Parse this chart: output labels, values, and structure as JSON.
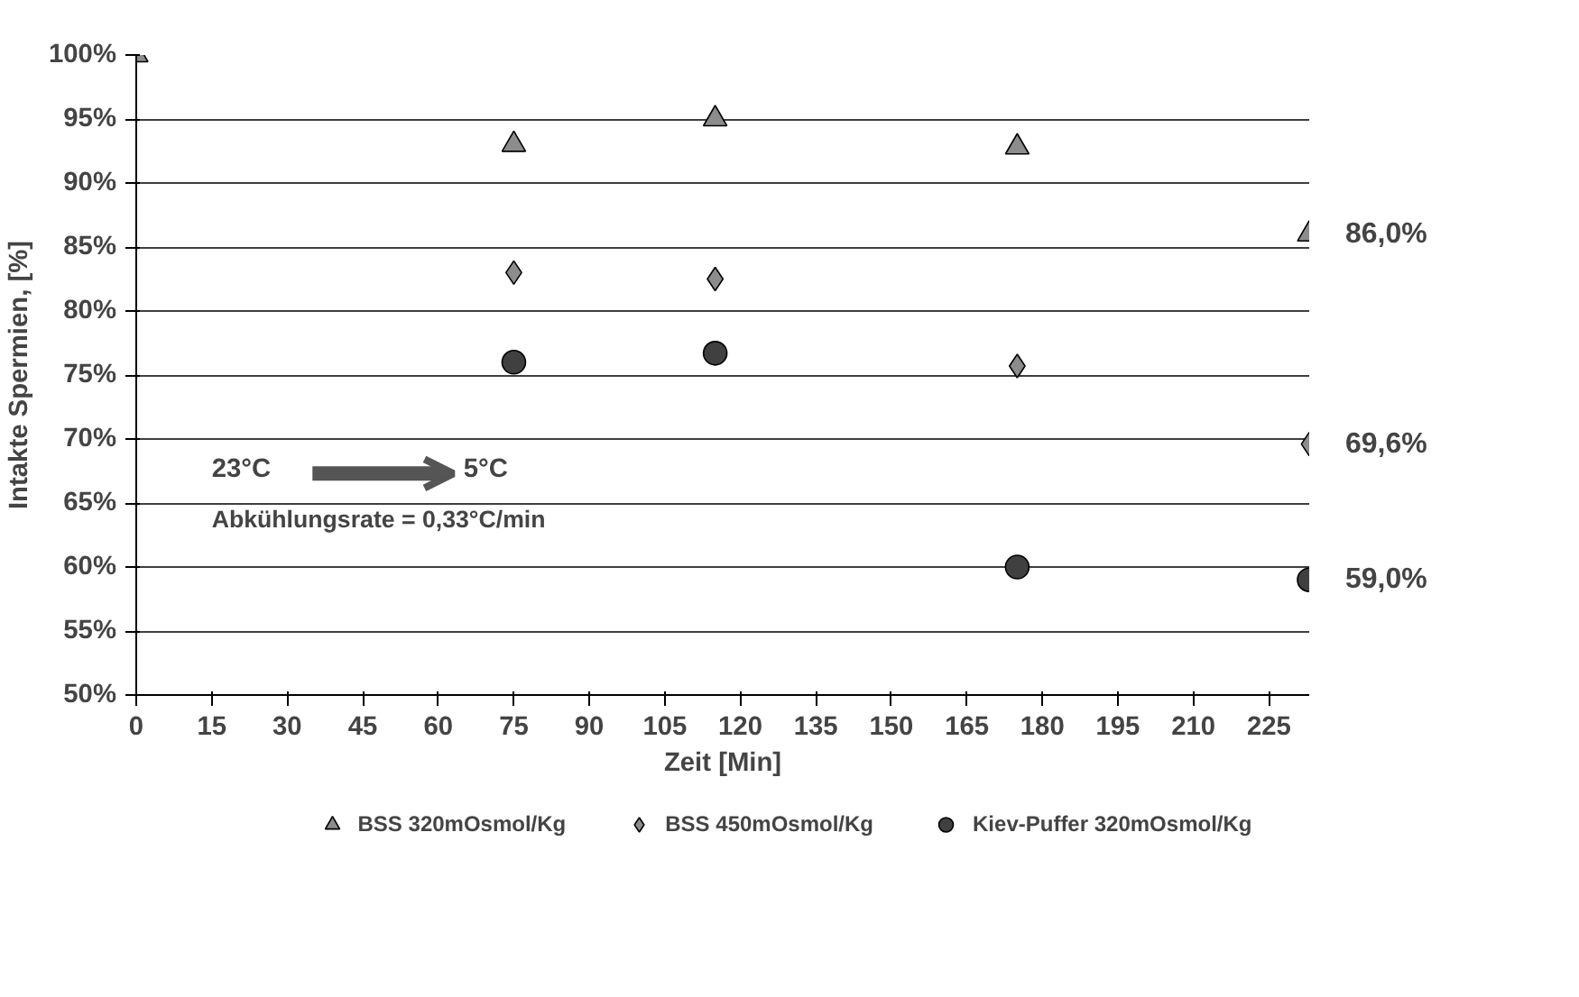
{
  "chart_data": {
    "type": "scatter",
    "xlabel": "Zeit [Min]",
    "ylabel": "Intakte Spermien, [%]",
    "x": [
      0,
      75,
      115,
      175,
      233
    ],
    "series": [
      {
        "name": "BSS 320mOsmol/Kg",
        "color": "#8c8c8c",
        "marker": "triangle",
        "values": [
          100,
          93.0,
          95.0,
          92.8,
          86.0
        ],
        "value_labels": [
          null,
          null,
          null,
          null,
          "86,0%"
        ]
      },
      {
        "name": "BSS 450mOsmol/Kg",
        "color": "#8c8c8c",
        "marker": "diamond",
        "values": [
          null,
          83.0,
          82.5,
          75.7,
          69.6
        ],
        "value_labels": [
          null,
          null,
          null,
          null,
          "69,6%"
        ]
      },
      {
        "name": "Kiev-Puffer 320mOsmol/Kg",
        "color": "#404040",
        "marker": "circle",
        "values": [
          null,
          76.0,
          76.7,
          60.0,
          59.0
        ],
        "value_labels": [
          null,
          null,
          null,
          null,
          "59,0%"
        ]
      }
    ],
    "xlim": [
      0,
      233
    ],
    "xticks": [
      0,
      15,
      30,
      45,
      60,
      75,
      90,
      105,
      120,
      135,
      150,
      165,
      180,
      195,
      210,
      225
    ],
    "ylim": [
      50,
      100
    ],
    "yticks": [
      {
        "value": 50,
        "label": "50%"
      },
      {
        "value": 55,
        "label": "55%"
      },
      {
        "value": 60,
        "label": "60%"
      },
      {
        "value": 65,
        "label": "65%"
      },
      {
        "value": 70,
        "label": "70%"
      },
      {
        "value": 75,
        "label": "75%"
      },
      {
        "value": 80,
        "label": "80%"
      },
      {
        "value": 85,
        "label": "85%"
      },
      {
        "value": 90,
        "label": "90%"
      },
      {
        "value": 95,
        "label": "95%"
      },
      {
        "value": 100,
        "label": "100%"
      }
    ],
    "grid": "y",
    "legend": "bottom",
    "annotations": [
      "23°C",
      "5°C",
      "Abkühlungsrate = 0,33°C/min"
    ]
  }
}
